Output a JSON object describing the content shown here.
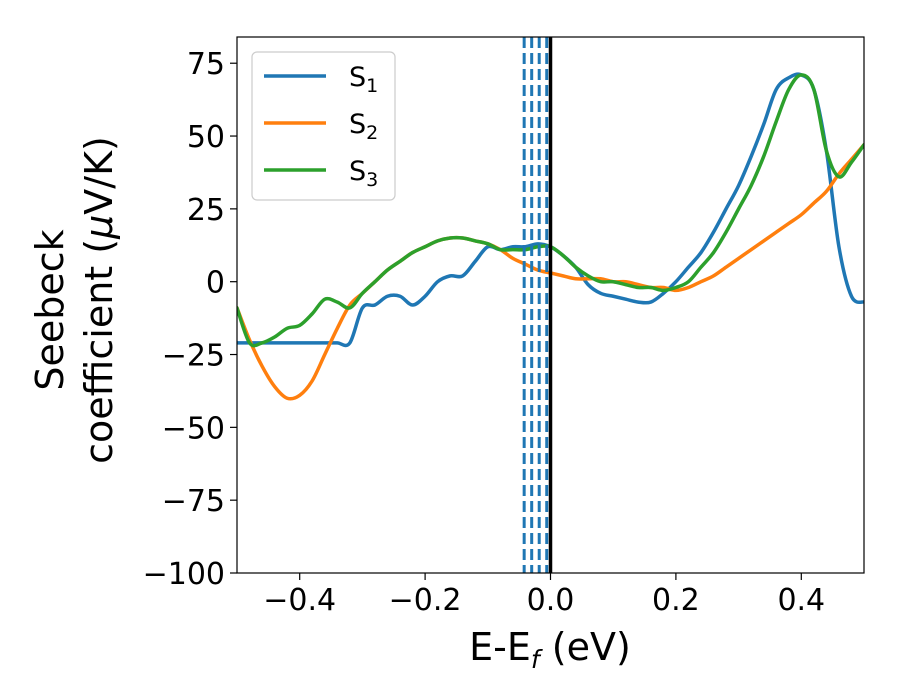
{
  "chart_data": {
    "type": "line",
    "xlabel": "E-E",
    "xlabel_sub": "f",
    "xlabel_unit": " (eV)",
    "ylabel_line1": "Seebeck",
    "ylabel_line2": "coefficient  (",
    "ylabel_mu": "μ",
    "ylabel_unit": "V/K)",
    "xlim": [
      -0.5,
      0.5
    ],
    "ylim": [
      -100,
      84
    ],
    "x_ticks": [
      -0.4,
      -0.2,
      0.0,
      0.2,
      0.4
    ],
    "x_tick_labels": [
      "−0.4",
      "−0.2",
      "0.0",
      "0.2",
      "0.4"
    ],
    "y_ticks": [
      75,
      50,
      25,
      0,
      -25,
      -50,
      -75,
      -100
    ],
    "y_tick_labels": [
      "75",
      "50",
      "25",
      "0",
      "−25",
      "−50",
      "−75",
      "−100"
    ],
    "grid": false,
    "legend_position": "top-left",
    "colors": {
      "S1": "#1f77b4",
      "S2": "#ff7f0e",
      "S3": "#2ca02c",
      "fermi": "#000000"
    },
    "series": [
      {
        "name": "S",
        "name_sub": "1",
        "color": "#1f77b4",
        "x": [
          -0.5,
          -0.48,
          -0.46,
          -0.44,
          -0.42,
          -0.4,
          -0.38,
          -0.36,
          -0.34,
          -0.32,
          -0.3,
          -0.28,
          -0.26,
          -0.24,
          -0.22,
          -0.2,
          -0.18,
          -0.16,
          -0.14,
          -0.12,
          -0.1,
          -0.08,
          -0.06,
          -0.04,
          -0.02,
          0.0,
          0.02,
          0.04,
          0.06,
          0.08,
          0.1,
          0.12,
          0.14,
          0.16,
          0.18,
          0.2,
          0.22,
          0.24,
          0.26,
          0.28,
          0.3,
          0.32,
          0.34,
          0.36,
          0.38,
          0.4,
          0.42,
          0.44,
          0.46,
          0.48,
          0.5
        ],
        "y": [
          -21,
          -21,
          -21,
          -21,
          -21,
          -21,
          -21,
          -21,
          -21,
          -21,
          -9,
          -8,
          -5,
          -5,
          -8,
          -5,
          0,
          2,
          2,
          7,
          12,
          11,
          12,
          12,
          13,
          12,
          9,
          5,
          -1,
          -4,
          -5,
          -6,
          -7,
          -7,
          -4,
          0,
          5,
          10,
          17,
          25,
          33,
          43,
          54,
          66,
          70,
          71,
          66,
          45,
          12,
          -5,
          -7
        ]
      },
      {
        "name": "S",
        "name_sub": "2",
        "color": "#ff7f0e",
        "x": [
          -0.5,
          -0.48,
          -0.46,
          -0.44,
          -0.42,
          -0.4,
          -0.38,
          -0.36,
          -0.34,
          -0.32,
          -0.3,
          -0.28,
          -0.26,
          -0.24,
          -0.22,
          -0.2,
          -0.18,
          -0.16,
          -0.14,
          -0.12,
          -0.1,
          -0.08,
          -0.06,
          -0.04,
          -0.02,
          0.0,
          0.02,
          0.04,
          0.06,
          0.08,
          0.1,
          0.12,
          0.14,
          0.16,
          0.18,
          0.2,
          0.22,
          0.24,
          0.26,
          0.28,
          0.3,
          0.32,
          0.34,
          0.36,
          0.38,
          0.4,
          0.42,
          0.44,
          0.46,
          0.48,
          0.5
        ],
        "y": [
          -9,
          -20,
          -29,
          -36,
          -40,
          -39,
          -34,
          -25,
          -16,
          -8,
          -4,
          0,
          4,
          7,
          10,
          12,
          14,
          15,
          15,
          14,
          13,
          11,
          8,
          6,
          4,
          3,
          2,
          1,
          1,
          1,
          0,
          0,
          -1,
          -2,
          -2,
          -3,
          -2,
          0,
          2,
          5,
          8,
          11,
          14,
          17,
          20,
          23,
          27,
          31,
          37,
          42,
          47
        ]
      },
      {
        "name": "S",
        "name_sub": "3",
        "color": "#2ca02c",
        "x": [
          -0.5,
          -0.48,
          -0.46,
          -0.44,
          -0.42,
          -0.4,
          -0.38,
          -0.36,
          -0.34,
          -0.32,
          -0.3,
          -0.28,
          -0.26,
          -0.24,
          -0.22,
          -0.2,
          -0.18,
          -0.16,
          -0.14,
          -0.12,
          -0.1,
          -0.08,
          -0.06,
          -0.04,
          -0.02,
          0.0,
          0.02,
          0.04,
          0.06,
          0.08,
          0.1,
          0.12,
          0.14,
          0.16,
          0.18,
          0.2,
          0.22,
          0.24,
          0.26,
          0.28,
          0.3,
          0.32,
          0.34,
          0.36,
          0.38,
          0.4,
          0.42,
          0.44,
          0.46,
          0.48,
          0.5
        ],
        "y": [
          -9,
          -21,
          -21,
          -19,
          -16,
          -15,
          -11,
          -6,
          -7,
          -9,
          -4,
          0,
          4,
          7,
          10,
          12,
          14,
          15,
          15,
          14,
          13,
          11,
          11,
          11,
          12,
          12,
          9,
          5,
          2,
          0,
          0,
          -1,
          -2,
          -2,
          -3,
          -2,
          0,
          5,
          10,
          17,
          25,
          33,
          43,
          55,
          66,
          71,
          66,
          45,
          36,
          41,
          47
        ]
      }
    ],
    "vlines": [
      {
        "x": -0.042,
        "style": "dashed",
        "color": "#1f77b4"
      },
      {
        "x": -0.03,
        "style": "dashed",
        "color": "#1f77b4"
      },
      {
        "x": -0.018,
        "style": "dashed",
        "color": "#1f77b4"
      },
      {
        "x": -0.006,
        "style": "dashed",
        "color": "#1f77b4"
      },
      {
        "x": 0.0,
        "style": "solid",
        "color": "#000000"
      }
    ]
  }
}
